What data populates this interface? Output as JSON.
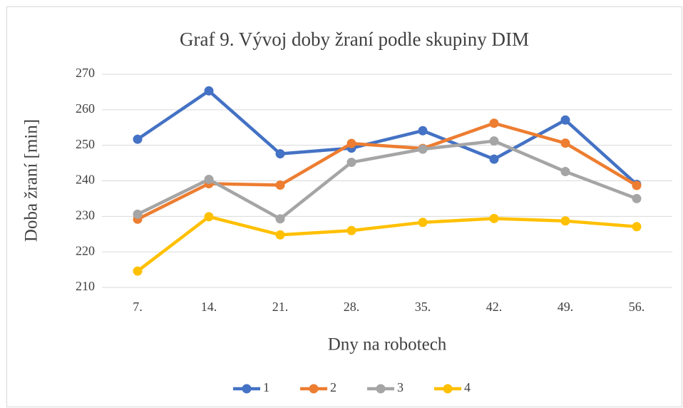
{
  "chart_data": {
    "type": "line",
    "title": "Graf 9. Vývoj doby žraní podle skupiny DIM",
    "x_label": "Dny na robotech",
    "y_label": "Doba žraní [min]",
    "categories": [
      "7.",
      "14.",
      "21.",
      "28.",
      "35.",
      "42.",
      "49.",
      "56."
    ],
    "series": [
      {
        "name": "1",
        "color": "#4472c4",
        "values": [
          251.7,
          265.3,
          247.6,
          249.2,
          254.1,
          246.1,
          257.1,
          239.0
        ]
      },
      {
        "name": "2",
        "color": "#ed7d31",
        "values": [
          229.2,
          239.2,
          238.8,
          250.5,
          249.1,
          256.2,
          250.6,
          238.7
        ]
      },
      {
        "name": "3",
        "color": "#a5a5a5",
        "values": [
          230.6,
          240.4,
          229.3,
          245.2,
          248.9,
          251.2,
          242.6,
          235.0
        ]
      },
      {
        "name": "4",
        "color": "#ffc000",
        "values": [
          214.6,
          229.9,
          224.8,
          226.0,
          228.3,
          229.4,
          228.7,
          227.1
        ]
      }
    ],
    "ylim": [
      210,
      270
    ],
    "yticks": [
      210,
      220,
      230,
      240,
      250,
      260,
      270
    ],
    "grid": true,
    "legend": "bottom"
  }
}
